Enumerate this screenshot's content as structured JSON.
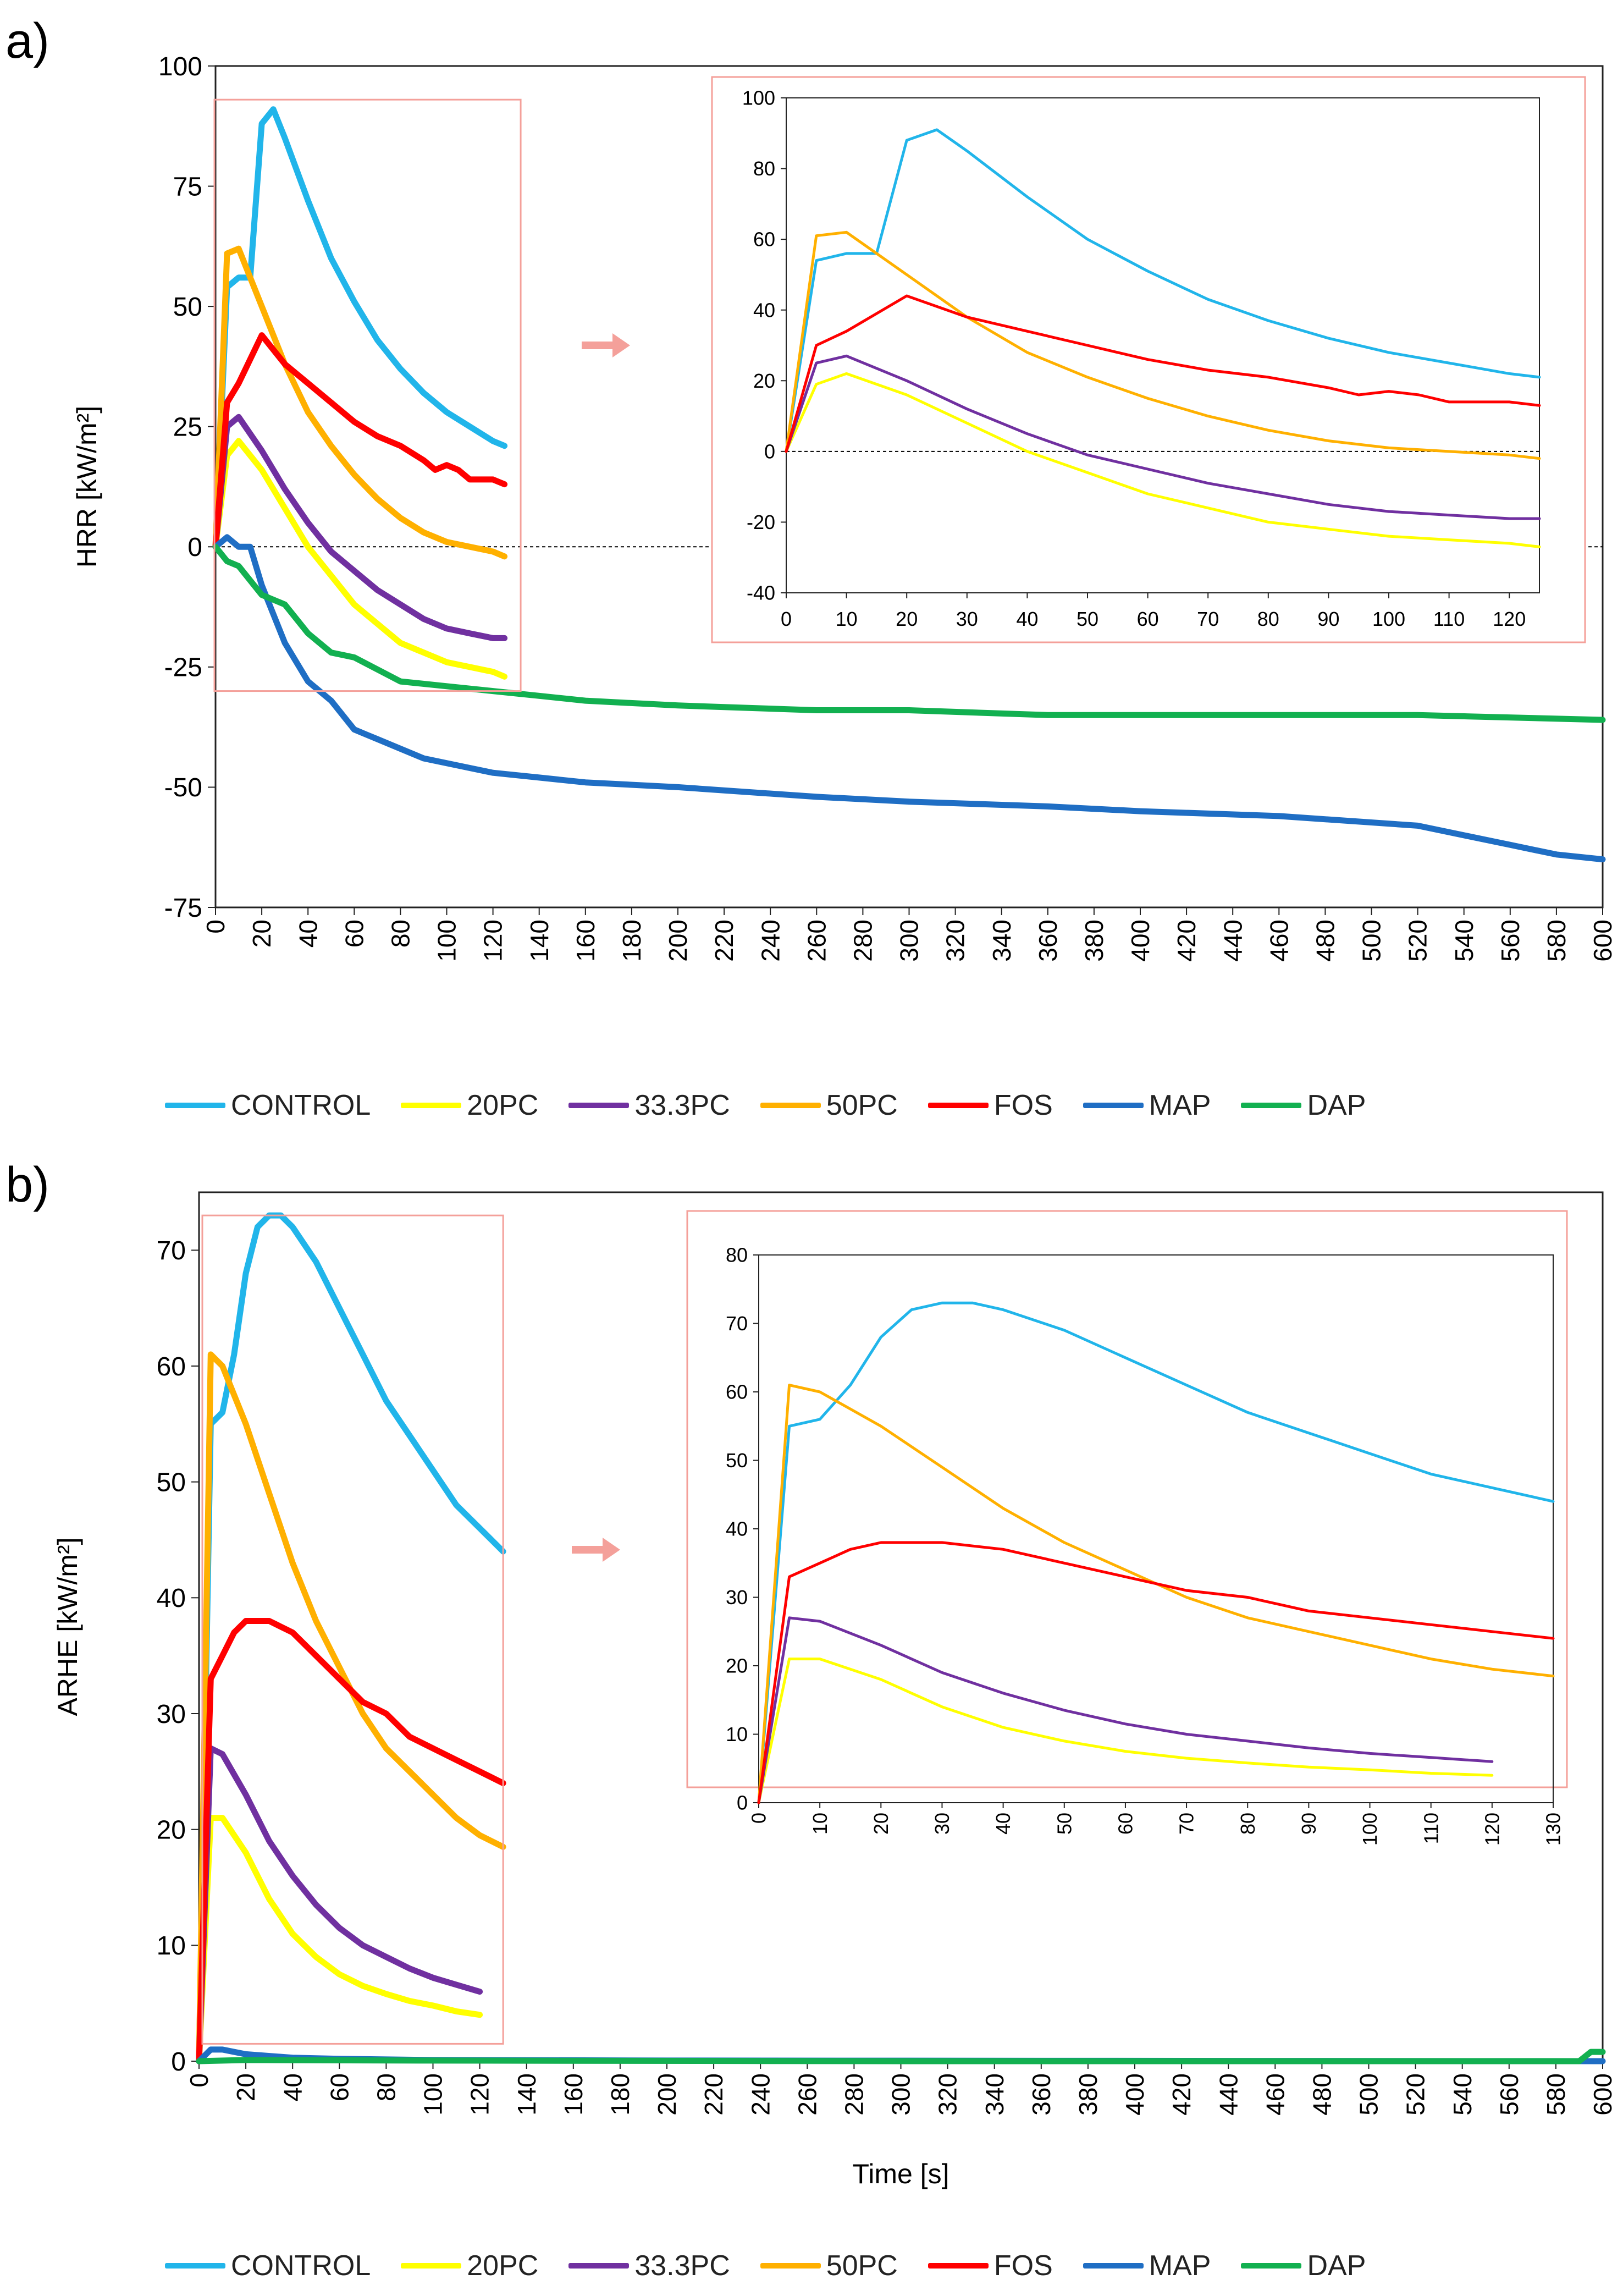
{
  "colors": {
    "CONTROL": "#21b5ea",
    "20PC": "#ffff00",
    "33.3PC": "#7030a0",
    "50PC": "#ffb000",
    "FOS": "#ff0000",
    "MAP": "#1f6ec4",
    "DAP": "#12b050",
    "inset_border": "#f4a09a",
    "arrow": "#f4a09a"
  },
  "legend": {
    "entries": [
      "CONTROL",
      "20PC",
      "33.3PC",
      "50PC",
      "FOS",
      "MAP",
      "DAP"
    ]
  },
  "chart_data": [
    {
      "id": "a_main",
      "panel_label": "a)",
      "type": "line",
      "title": "",
      "xlabel": "",
      "ylabel": "HRR [kW/m²]",
      "xlim": [
        0,
        600
      ],
      "ylim": [
        -75,
        100
      ],
      "xticks": [
        0,
        20,
        40,
        60,
        80,
        100,
        120,
        140,
        160,
        180,
        200,
        220,
        240,
        260,
        280,
        300,
        320,
        340,
        360,
        380,
        400,
        420,
        440,
        460,
        480,
        500,
        520,
        540,
        560,
        580,
        600
      ],
      "yticks": [
        -75,
        -50,
        -25,
        0,
        25,
        50,
        75,
        100
      ],
      "zero_line": true,
      "series": [
        {
          "name": "CONTROL",
          "x": [
            0,
            5,
            10,
            15,
            20,
            25,
            30,
            40,
            50,
            60,
            70,
            80,
            90,
            100,
            110,
            120,
            125
          ],
          "y": [
            0,
            54,
            56,
            56,
            88,
            91,
            85,
            72,
            60,
            51,
            43,
            37,
            32,
            28,
            25,
            22,
            21
          ]
        },
        {
          "name": "20PC",
          "x": [
            0,
            5,
            10,
            20,
            30,
            40,
            50,
            60,
            70,
            80,
            90,
            100,
            110,
            120,
            125
          ],
          "y": [
            0,
            19,
            22,
            16,
            8,
            0,
            -6,
            -12,
            -16,
            -20,
            -22,
            -24,
            -25,
            -26,
            -27
          ]
        },
        {
          "name": "33.3PC",
          "x": [
            0,
            5,
            10,
            20,
            30,
            40,
            50,
            60,
            70,
            80,
            90,
            100,
            110,
            120,
            125
          ],
          "y": [
            0,
            25,
            27,
            20,
            12,
            5,
            -1,
            -5,
            -9,
            -12,
            -15,
            -17,
            -18,
            -19,
            -19
          ]
        },
        {
          "name": "50PC",
          "x": [
            0,
            5,
            10,
            20,
            30,
            40,
            50,
            60,
            70,
            80,
            90,
            100,
            110,
            120,
            125
          ],
          "y": [
            0,
            61,
            62,
            50,
            38,
            28,
            21,
            15,
            10,
            6,
            3,
            1,
            0,
            -1,
            -2
          ]
        },
        {
          "name": "FOS",
          "x": [
            0,
            5,
            10,
            20,
            30,
            40,
            50,
            60,
            70,
            80,
            90,
            95,
            100,
            105,
            110,
            120,
            125
          ],
          "y": [
            0,
            30,
            34,
            44,
            38,
            34,
            30,
            26,
            23,
            21,
            18,
            16,
            17,
            16,
            14,
            14,
            13
          ]
        },
        {
          "name": "MAP",
          "x": [
            0,
            5,
            10,
            15,
            20,
            30,
            40,
            50,
            60,
            65,
            70,
            80,
            90,
            100,
            110,
            120,
            140,
            160,
            200,
            260,
            300,
            360,
            400,
            460,
            520,
            540,
            560,
            580,
            600
          ],
          "y": [
            0,
            2,
            0,
            0,
            -8,
            -20,
            -28,
            -32,
            -38,
            -39,
            -40,
            -42,
            -44,
            -45,
            -46,
            -47,
            -48,
            -49,
            -50,
            -52,
            -53,
            -54,
            -55,
            -56,
            -58,
            -60,
            -62,
            -64,
            -65
          ]
        },
        {
          "name": "DAP",
          "x": [
            0,
            5,
            10,
            20,
            30,
            40,
            50,
            60,
            80,
            100,
            120,
            140,
            160,
            200,
            260,
            300,
            360,
            400,
            460,
            520,
            600
          ],
          "y": [
            0,
            -3,
            -4,
            -10,
            -12,
            -18,
            -22,
            -23,
            -28,
            -29,
            -30,
            -31,
            -32,
            -33,
            -34,
            -34,
            -35,
            -35,
            -35,
            -35,
            -36
          ]
        }
      ]
    },
    {
      "id": "a_inset",
      "type": "line",
      "title": "",
      "xlim": [
        0,
        125
      ],
      "ylim": [
        -40,
        100
      ],
      "xticks": [
        0,
        10,
        20,
        30,
        40,
        50,
        60,
        70,
        80,
        90,
        100,
        110,
        120
      ],
      "yticks": [
        -40,
        -20,
        0,
        20,
        40,
        60,
        80,
        100
      ],
      "zero_line": true,
      "series_ref": [
        "CONTROL",
        "20PC",
        "33.3PC",
        "50PC",
        "FOS"
      ]
    },
    {
      "id": "b_main",
      "panel_label": "b)",
      "type": "line",
      "title": "",
      "xlabel": "Time [s]",
      "ylabel": "ARHE [kW/m²]",
      "xlim": [
        0,
        600
      ],
      "ylim": [
        0,
        75
      ],
      "xticks": [
        0,
        20,
        40,
        60,
        80,
        100,
        120,
        140,
        160,
        180,
        200,
        220,
        240,
        260,
        280,
        300,
        320,
        340,
        360,
        380,
        400,
        420,
        440,
        460,
        480,
        500,
        520,
        540,
        560,
        580,
        600
      ],
      "yticks": [
        0,
        10,
        20,
        30,
        40,
        50,
        60,
        70
      ],
      "series": [
        {
          "name": "CONTROL",
          "x": [
            0,
            5,
            10,
            15,
            20,
            25,
            30,
            35,
            40,
            50,
            60,
            70,
            80,
            90,
            100,
            110,
            120,
            130
          ],
          "y": [
            0,
            55,
            56,
            61,
            68,
            72,
            73,
            73,
            72,
            69,
            65,
            61,
            57,
            54,
            51,
            48,
            46,
            44
          ]
        },
        {
          "name": "20PC",
          "x": [
            0,
            5,
            10,
            20,
            30,
            40,
            50,
            60,
            70,
            80,
            90,
            100,
            110,
            120
          ],
          "y": [
            0,
            21,
            21,
            18,
            14,
            11,
            9,
            7.5,
            6.5,
            5.8,
            5.2,
            4.8,
            4.3,
            4
          ]
        },
        {
          "name": "33.3PC",
          "x": [
            0,
            5,
            10,
            20,
            30,
            40,
            50,
            60,
            70,
            80,
            90,
            100,
            110,
            120
          ],
          "y": [
            0,
            27,
            26.5,
            23,
            19,
            16,
            13.5,
            11.5,
            10,
            9,
            8,
            7.2,
            6.6,
            6
          ]
        },
        {
          "name": "50PC",
          "x": [
            0,
            5,
            10,
            20,
            30,
            40,
            50,
            60,
            70,
            80,
            90,
            100,
            110,
            120,
            130
          ],
          "y": [
            0,
            61,
            60,
            55,
            49,
            43,
            38,
            34,
            30,
            27,
            25,
            23,
            21,
            19.5,
            18.5
          ]
        },
        {
          "name": "FOS",
          "x": [
            0,
            5,
            10,
            15,
            20,
            25,
            30,
            40,
            50,
            60,
            70,
            80,
            90,
            100,
            110,
            120,
            130
          ],
          "y": [
            0,
            33,
            35,
            37,
            38,
            38,
            38,
            37,
            35,
            33,
            31,
            30,
            28,
            27,
            26,
            25,
            24
          ]
        },
        {
          "name": "MAP",
          "x": [
            0,
            5,
            10,
            20,
            40,
            60,
            100,
            200,
            600
          ],
          "y": [
            0,
            1,
            1,
            0.6,
            0.3,
            0.2,
            0.1,
            0.05,
            0
          ]
        },
        {
          "name": "DAP",
          "x": [
            0,
            20,
            100,
            300,
            590,
            595,
            600
          ],
          "y": [
            0,
            0.1,
            0.05,
            0,
            0,
            0.8,
            0.8
          ]
        }
      ]
    },
    {
      "id": "b_inset",
      "type": "line",
      "title": "",
      "xlim": [
        0,
        130
      ],
      "ylim": [
        0,
        80
      ],
      "xticks": [
        0,
        10,
        20,
        30,
        40,
        50,
        60,
        70,
        80,
        90,
        100,
        110,
        120,
        130
      ],
      "yticks": [
        0,
        10,
        20,
        30,
        40,
        50,
        60,
        70,
        80
      ],
      "series_ref": [
        "CONTROL",
        "20PC",
        "33.3PC",
        "50PC",
        "FOS"
      ]
    }
  ]
}
